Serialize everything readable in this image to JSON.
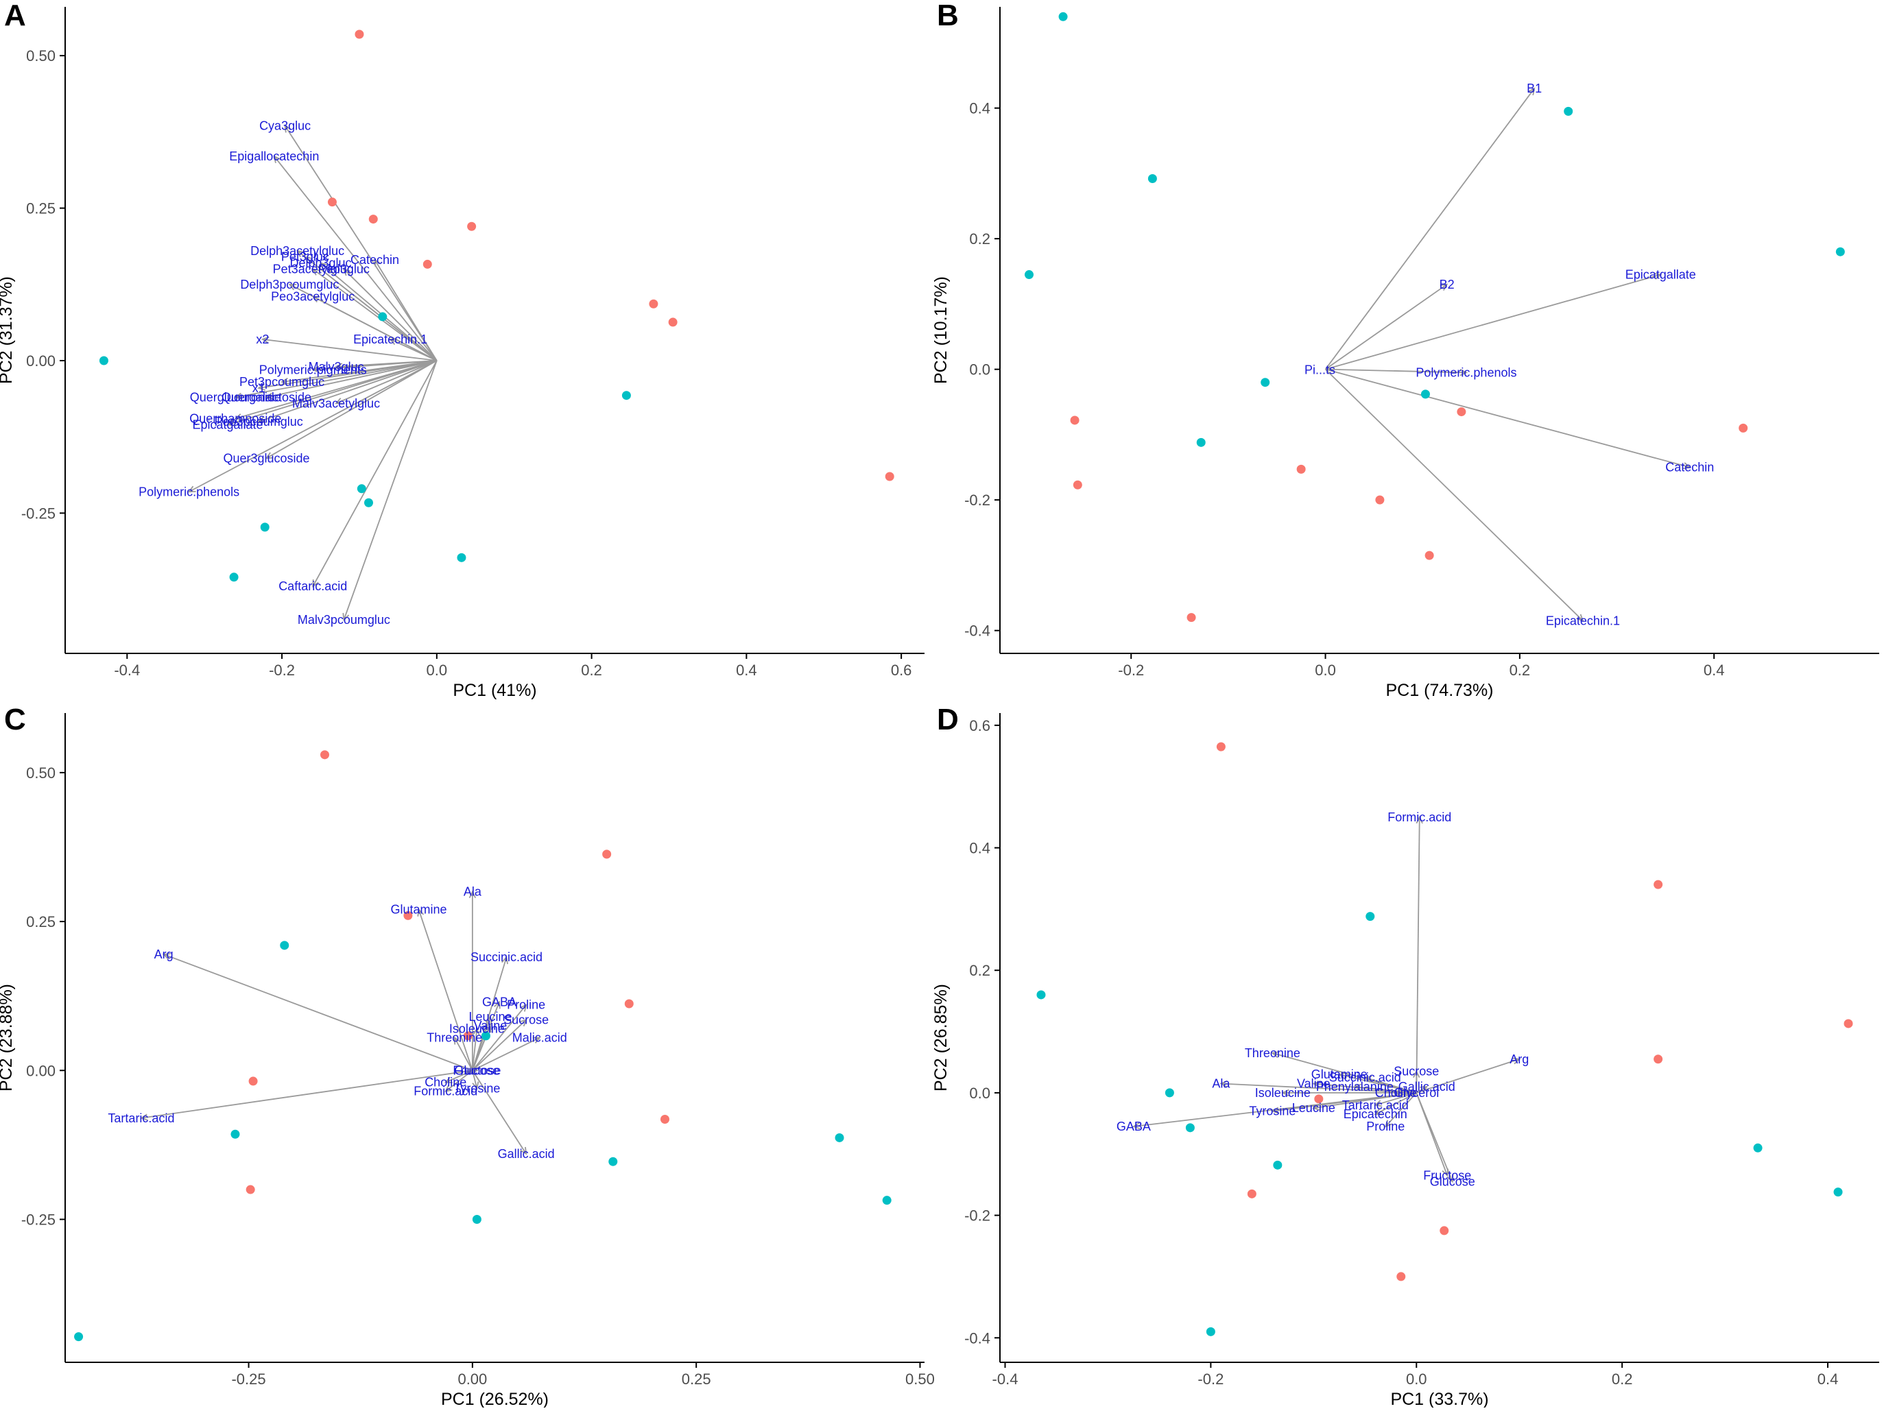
{
  "colors": {
    "red": "#F8766D",
    "teal": "#00BFC4",
    "label": "#1a1ad6",
    "arrow": "#9a9a9a",
    "axis": "#000000"
  },
  "chart_data": [
    {
      "panel": "A",
      "type": "scatter",
      "subtype": "pca-biplot",
      "xlabel": "PC1 (41%)",
      "ylabel": "PC2 (31.37%)",
      "xlim": [
        -0.48,
        0.63
      ],
      "ylim": [
        -0.48,
        0.58
      ],
      "xticks": [
        -0.4,
        -0.2,
        0.0,
        0.2,
        0.4,
        0.6
      ],
      "xtick_labels": [
        "-0.4",
        "-0.2",
        "0.0",
        "0.2",
        "0.4",
        "0.6"
      ],
      "yticks": [
        -0.25,
        0.0,
        0.25,
        0.5
      ],
      "ytick_labels": [
        "-0.25",
        "0.00",
        "0.25",
        "0.50"
      ],
      "origin": [
        0,
        0
      ],
      "points": [
        {
          "x": -0.1,
          "y": 0.535,
          "group": "red"
        },
        {
          "x": -0.135,
          "y": 0.26,
          "group": "red"
        },
        {
          "x": -0.082,
          "y": 0.232,
          "group": "red"
        },
        {
          "x": 0.045,
          "y": 0.22,
          "group": "red"
        },
        {
          "x": -0.012,
          "y": 0.158,
          "group": "red"
        },
        {
          "x": 0.28,
          "y": 0.093,
          "group": "red"
        },
        {
          "x": 0.305,
          "y": 0.063,
          "group": "red"
        },
        {
          "x": 0.585,
          "y": -0.19,
          "group": "red"
        },
        {
          "x": -0.43,
          "y": 0.0,
          "group": "teal"
        },
        {
          "x": -0.07,
          "y": 0.072,
          "group": "teal"
        },
        {
          "x": 0.245,
          "y": -0.057,
          "group": "teal"
        },
        {
          "x": -0.097,
          "y": -0.21,
          "group": "teal"
        },
        {
          "x": -0.088,
          "y": -0.233,
          "group": "teal"
        },
        {
          "x": -0.222,
          "y": -0.273,
          "group": "teal"
        },
        {
          "x": 0.032,
          "y": -0.323,
          "group": "teal"
        },
        {
          "x": -0.262,
          "y": -0.355,
          "group": "teal"
        }
      ],
      "loadings": [
        {
          "label": "Cya3gluc",
          "x": -0.196,
          "y": 0.385
        },
        {
          "label": "Epigallocatechin",
          "x": -0.21,
          "y": 0.335
        },
        {
          "label": "Delph3acetylgluc",
          "x": -0.18,
          "y": 0.18
        },
        {
          "label": "Pet3gluc",
          "x": -0.17,
          "y": 0.17
        },
        {
          "label": "Catechin",
          "x": -0.08,
          "y": 0.165
        },
        {
          "label": "Delph3gluc",
          "x": -0.15,
          "y": 0.16
        },
        {
          "label": "Peo3gluc",
          "x": -0.12,
          "y": 0.15
        },
        {
          "label": "Pet3acetylgluc",
          "x": -0.16,
          "y": 0.15
        },
        {
          "label": "Delph3pcoumgluc",
          "x": -0.19,
          "y": 0.125
        },
        {
          "label": "Peo3acetylgluc",
          "x": -0.16,
          "y": 0.105
        },
        {
          "label": "Epicatechin.1",
          "x": -0.06,
          "y": 0.035
        },
        {
          "label": "x2",
          "x": -0.225,
          "y": 0.035
        },
        {
          "label": "Malv3gluc",
          "x": -0.13,
          "y": -0.01
        },
        {
          "label": "Polymeric.pigments",
          "x": -0.16,
          "y": -0.015
        },
        {
          "label": "Pet3pcoumgluc",
          "x": -0.2,
          "y": -0.035
        },
        {
          "label": "x1",
          "x": -0.23,
          "y": -0.045
        },
        {
          "label": "Querglucuronide",
          "x": -0.26,
          "y": -0.06
        },
        {
          "label": "Quergalactoside",
          "x": -0.22,
          "y": -0.06
        },
        {
          "label": "Malv3acetylgluc",
          "x": -0.13,
          "y": -0.07
        },
        {
          "label": "Querrhamnoside",
          "x": -0.26,
          "y": -0.095
        },
        {
          "label": "Peo3pcoumgluc",
          "x": -0.23,
          "y": -0.1
        },
        {
          "label": "Epicatgallate",
          "x": -0.27,
          "y": -0.105
        },
        {
          "label": "Quer3glucoside",
          "x": -0.22,
          "y": -0.16
        },
        {
          "label": "Polymeric.phenols",
          "x": -0.32,
          "y": -0.215
        },
        {
          "label": "Caftaric.acid",
          "x": -0.16,
          "y": -0.37
        },
        {
          "label": "Malv3pcoumgluc",
          "x": -0.12,
          "y": -0.425
        }
      ]
    },
    {
      "panel": "B",
      "type": "scatter",
      "subtype": "pca-biplot",
      "xlabel": "PC1 (74.73%)",
      "ylabel": "PC2 (10.17%)",
      "xlim": [
        -0.335,
        0.57
      ],
      "ylim": [
        -0.435,
        0.555
      ],
      "xticks": [
        -0.2,
        0.0,
        0.2,
        0.4
      ],
      "xtick_labels": [
        "-0.2",
        "0.0",
        "0.2",
        "0.4"
      ],
      "yticks": [
        -0.4,
        -0.2,
        0.0,
        0.2,
        0.4
      ],
      "ytick_labels": [
        "-0.4",
        "-0.2",
        "0.0",
        "0.2",
        "0.4"
      ],
      "origin": [
        0,
        0
      ],
      "points": [
        {
          "x": -0.27,
          "y": 0.54,
          "group": "teal"
        },
        {
          "x": 0.25,
          "y": 0.395,
          "group": "teal"
        },
        {
          "x": -0.178,
          "y": 0.292,
          "group": "teal"
        },
        {
          "x": -0.305,
          "y": 0.145,
          "group": "teal"
        },
        {
          "x": 0.53,
          "y": 0.18,
          "group": "teal"
        },
        {
          "x": -0.062,
          "y": -0.02,
          "group": "teal"
        },
        {
          "x": 0.103,
          "y": -0.038,
          "group": "teal"
        },
        {
          "x": -0.128,
          "y": -0.112,
          "group": "teal"
        },
        {
          "x": 0.14,
          "y": -0.065,
          "group": "red"
        },
        {
          "x": -0.258,
          "y": -0.078,
          "group": "red"
        },
        {
          "x": 0.43,
          "y": -0.09,
          "group": "red"
        },
        {
          "x": -0.255,
          "y": -0.177,
          "group": "red"
        },
        {
          "x": -0.025,
          "y": -0.153,
          "group": "red"
        },
        {
          "x": 0.056,
          "y": -0.2,
          "group": "red"
        },
        {
          "x": 0.107,
          "y": -0.285,
          "group": "red"
        },
        {
          "x": -0.138,
          "y": -0.38,
          "group": "red"
        }
      ],
      "loadings": [
        {
          "label": "B1",
          "x": 0.215,
          "y": 0.43
        },
        {
          "label": "B2",
          "x": 0.125,
          "y": 0.13
        },
        {
          "label": "Epicatgallate",
          "x": 0.345,
          "y": 0.145
        },
        {
          "label": "Polymeric.phenols",
          "x": 0.145,
          "y": -0.005
        },
        {
          "label": "Catechin",
          "x": 0.375,
          "y": -0.15
        },
        {
          "label": "Epicatechin.1",
          "x": 0.265,
          "y": -0.385
        }
      ],
      "cluster_label": "Pi...ts"
    },
    {
      "panel": "C",
      "type": "scatter",
      "subtype": "pca-biplot",
      "xlabel": "PC1 (26.52%)",
      "ylabel": "PC2 (23.88%)",
      "xlim": [
        -0.455,
        0.505
      ],
      "ylim": [
        -0.49,
        0.6
      ],
      "xticks": [
        -0.25,
        0.0,
        0.25,
        0.5
      ],
      "xtick_labels": [
        "-0.25",
        "0.00",
        "0.25",
        "0.50"
      ],
      "yticks": [
        -0.25,
        0.0,
        0.25,
        0.5
      ],
      "ytick_labels": [
        "-0.25",
        "0.00",
        "0.25",
        "0.50"
      ],
      "origin": [
        0,
        0
      ],
      "points": [
        {
          "x": -0.165,
          "y": 0.53,
          "group": "red"
        },
        {
          "x": 0.15,
          "y": 0.363,
          "group": "red"
        },
        {
          "x": -0.072,
          "y": 0.26,
          "group": "red"
        },
        {
          "x": 0.175,
          "y": 0.112,
          "group": "red"
        },
        {
          "x": -0.005,
          "y": 0.058,
          "group": "red"
        },
        {
          "x": -0.245,
          "y": -0.018,
          "group": "red"
        },
        {
          "x": 0.215,
          "y": -0.082,
          "group": "red"
        },
        {
          "x": -0.248,
          "y": -0.2,
          "group": "red"
        },
        {
          "x": -0.21,
          "y": 0.21,
          "group": "teal"
        },
        {
          "x": 0.015,
          "y": 0.058,
          "group": "teal"
        },
        {
          "x": -0.265,
          "y": -0.107,
          "group": "teal"
        },
        {
          "x": 0.41,
          "y": -0.113,
          "group": "teal"
        },
        {
          "x": 0.157,
          "y": -0.153,
          "group": "teal"
        },
        {
          "x": 0.005,
          "y": -0.25,
          "group": "teal"
        },
        {
          "x": 0.463,
          "y": -0.218,
          "group": "teal"
        },
        {
          "x": -0.44,
          "y": -0.447,
          "group": "teal"
        }
      ],
      "loadings": [
        {
          "label": "Ala",
          "x": 0.0,
          "y": 0.3
        },
        {
          "label": "Glutamine",
          "x": -0.06,
          "y": 0.27
        },
        {
          "label": "Arg",
          "x": -0.345,
          "y": 0.195
        },
        {
          "label": "Succinic.acid",
          "x": 0.038,
          "y": 0.19
        },
        {
          "label": "GABA",
          "x": 0.03,
          "y": 0.115
        },
        {
          "label": "Proline",
          "x": 0.06,
          "y": 0.11
        },
        {
          "label": "Leucine",
          "x": 0.02,
          "y": 0.09
        },
        {
          "label": "Sucrose",
          "x": 0.06,
          "y": 0.085
        },
        {
          "label": "Isoleucine",
          "x": 0.005,
          "y": 0.07
        },
        {
          "label": "Valine",
          "x": 0.02,
          "y": 0.075
        },
        {
          "label": "Malic.acid",
          "x": 0.075,
          "y": 0.055
        },
        {
          "label": "Threonine",
          "x": -0.02,
          "y": 0.055
        },
        {
          "label": "Fructose",
          "x": 0.005,
          "y": 0.0
        },
        {
          "label": "Glucose",
          "x": 0.005,
          "y": 0.0
        },
        {
          "label": "Choline",
          "x": -0.03,
          "y": -0.02
        },
        {
          "label": "Tyrosine",
          "x": 0.005,
          "y": -0.03
        },
        {
          "label": "Formic.acid",
          "x": -0.03,
          "y": -0.035
        },
        {
          "label": "Tartaric.acid",
          "x": -0.37,
          "y": -0.08
        },
        {
          "label": "Gallic.acid",
          "x": 0.06,
          "y": -0.14
        }
      ]
    },
    {
      "panel": "D",
      "type": "scatter",
      "subtype": "pca-biplot",
      "xlabel": "PC1 (33.7%)",
      "ylabel": "PC2 (26.85%)",
      "xlim": [
        -0.405,
        0.45
      ],
      "ylim": [
        -0.44,
        0.62
      ],
      "xticks": [
        -0.4,
        -0.2,
        0.0,
        0.2,
        0.4
      ],
      "xtick_labels": [
        "-0.4",
        "-0.2",
        "0.0",
        "0.2",
        "0.4"
      ],
      "yticks": [
        -0.4,
        -0.2,
        0.0,
        0.2,
        0.4,
        0.6
      ],
      "ytick_labels": [
        "-0.4",
        "-0.2",
        "0.0",
        "0.2",
        "0.4",
        "0.6"
      ],
      "origin": [
        0,
        0
      ],
      "points": [
        {
          "x": -0.19,
          "y": 0.565,
          "group": "red"
        },
        {
          "x": 0.235,
          "y": 0.34,
          "group": "red"
        },
        {
          "x": 0.42,
          "y": 0.113,
          "group": "red"
        },
        {
          "x": 0.235,
          "y": 0.055,
          "group": "red"
        },
        {
          "x": -0.095,
          "y": -0.01,
          "group": "red"
        },
        {
          "x": -0.16,
          "y": -0.165,
          "group": "red"
        },
        {
          "x": 0.027,
          "y": -0.225,
          "group": "red"
        },
        {
          "x": -0.015,
          "y": -0.3,
          "group": "red"
        },
        {
          "x": -0.045,
          "y": 0.288,
          "group": "teal"
        },
        {
          "x": -0.365,
          "y": 0.16,
          "group": "teal"
        },
        {
          "x": -0.24,
          "y": 0.0,
          "group": "teal"
        },
        {
          "x": -0.22,
          "y": -0.057,
          "group": "teal"
        },
        {
          "x": -0.135,
          "y": -0.118,
          "group": "teal"
        },
        {
          "x": 0.332,
          "y": -0.09,
          "group": "teal"
        },
        {
          "x": 0.41,
          "y": -0.162,
          "group": "teal"
        },
        {
          "x": -0.2,
          "y": -0.39,
          "group": "teal"
        }
      ],
      "loadings": [
        {
          "label": "Formic.acid",
          "x": 0.003,
          "y": 0.45
        },
        {
          "label": "Threonine",
          "x": -0.14,
          "y": 0.065
        },
        {
          "label": "Arg",
          "x": 0.1,
          "y": 0.055
        },
        {
          "label": "Sucrose",
          "x": 0.0,
          "y": 0.035
        },
        {
          "label": "Glutamine",
          "x": -0.075,
          "y": 0.03
        },
        {
          "label": "Succinic.acid",
          "x": -0.05,
          "y": 0.025
        },
        {
          "label": "Ala",
          "x": -0.19,
          "y": 0.015
        },
        {
          "label": "Valine",
          "x": -0.1,
          "y": 0.015
        },
        {
          "label": "Phenylalanine",
          "x": -0.06,
          "y": 0.01
        },
        {
          "label": "Gallic.acid",
          "x": 0.01,
          "y": 0.01
        },
        {
          "label": "Isoleucine",
          "x": -0.13,
          "y": 0.0
        },
        {
          "label": "Choline",
          "x": -0.02,
          "y": 0.0
        },
        {
          "label": "Glycerol",
          "x": 0.0,
          "y": 0.0
        },
        {
          "label": "Tartaric.acid",
          "x": -0.04,
          "y": -0.02
        },
        {
          "label": "Tyrosine",
          "x": -0.14,
          "y": -0.03
        },
        {
          "label": "Leucine",
          "x": -0.1,
          "y": -0.025
        },
        {
          "label": "Epicatechin",
          "x": -0.04,
          "y": -0.035
        },
        {
          "label": "Proline",
          "x": -0.03,
          "y": -0.055
        },
        {
          "label": "GABA",
          "x": -0.275,
          "y": -0.055
        },
        {
          "label": "Fructose",
          "x": 0.03,
          "y": -0.135
        },
        {
          "label": "Glucose",
          "x": 0.035,
          "y": -0.145
        }
      ]
    }
  ]
}
